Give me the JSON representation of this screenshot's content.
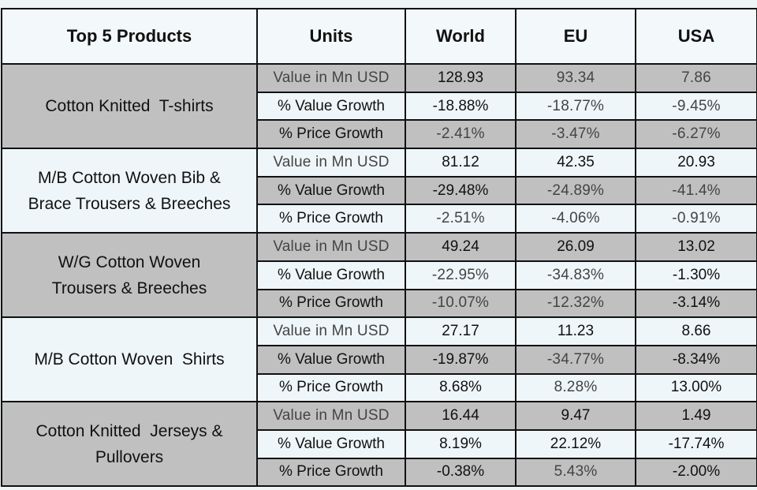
{
  "headers": [
    "Top 5 Products",
    "Units",
    "World",
    "EU",
    "USA"
  ],
  "units": [
    "Value in Mn USD",
    "% Value Growth",
    "% Price Growth"
  ],
  "products": [
    {
      "name_lines": [
        "Cotton Knitted  T-shirts"
      ],
      "rows": [
        {
          "world": "128.93",
          "eu": "93.34",
          "usa": "7.86",
          "light": [
            "eu",
            "usa"
          ]
        },
        {
          "world": "-18.88%",
          "eu": "-18.77%",
          "usa": "-9.45%",
          "light": [
            "eu",
            "usa"
          ]
        },
        {
          "world": "-2.41%",
          "eu": "-3.47%",
          "usa": "-6.27%",
          "light": [
            "world",
            "eu",
            "usa"
          ]
        }
      ]
    },
    {
      "name_lines": [
        "M/B Cotton Woven Bib &",
        "Brace Trousers & Breeches"
      ],
      "rows": [
        {
          "world": "81.12",
          "eu": "42.35",
          "usa": "20.93",
          "light": []
        },
        {
          "world": "-29.48%",
          "eu": "-24.89%",
          "usa": "-41.4%",
          "light": [
            "eu",
            "usa"
          ]
        },
        {
          "world": "-2.51%",
          "eu": "-4.06%",
          "usa": "-0.91%",
          "light": [
            "world",
            "eu",
            "usa"
          ]
        }
      ]
    },
    {
      "name_lines": [
        "W/G Cotton Woven",
        "Trousers & Breeches"
      ],
      "rows": [
        {
          "world": "49.24",
          "eu": "26.09",
          "usa": "13.02",
          "light": []
        },
        {
          "world": "-22.95%",
          "eu": "-34.83%",
          "usa": "-1.30%",
          "light": [
            "world",
            "eu"
          ]
        },
        {
          "world": "-10.07%",
          "eu": "-12.32%",
          "usa": "-3.14%",
          "light": [
            "world",
            "eu"
          ]
        }
      ]
    },
    {
      "name_lines": [
        "M/B Cotton Woven  Shirts"
      ],
      "rows": [
        {
          "world": "27.17",
          "eu": "11.23",
          "usa": "8.66",
          "light": []
        },
        {
          "world": "-19.87%",
          "eu": "-34.77%",
          "usa": "-8.34%",
          "light": [
            "eu"
          ]
        },
        {
          "world": "8.68%",
          "eu": "8.28%",
          "usa": "13.00%",
          "light": [
            "eu"
          ]
        }
      ]
    },
    {
      "name_lines": [
        "Cotton Knitted  Jerseys &",
        "Pullovers"
      ],
      "rows": [
        {
          "world": "16.44",
          "eu": "9.47",
          "usa": "1.49",
          "light": []
        },
        {
          "world": "8.19%",
          "eu": "22.12%",
          "usa": "-17.74%",
          "light": []
        },
        {
          "world": "-0.38%",
          "eu": "5.43%",
          "usa": "-2.00%",
          "light": [
            "eu"
          ]
        }
      ]
    }
  ]
}
